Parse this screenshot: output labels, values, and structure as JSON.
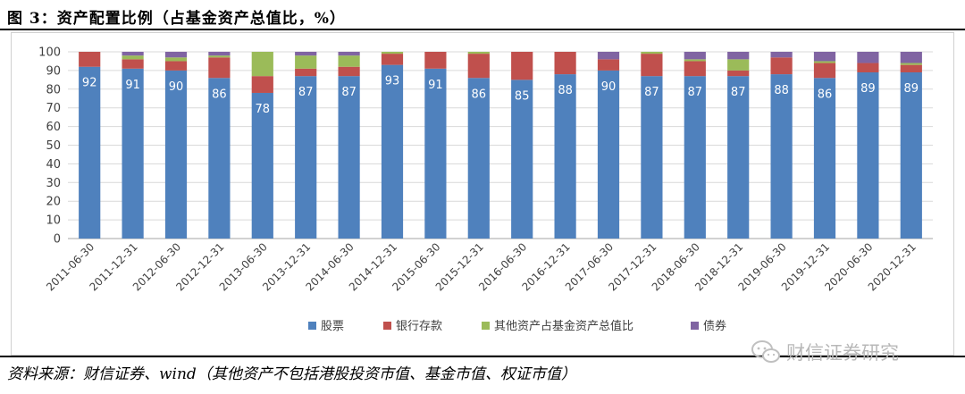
{
  "figure": {
    "title": "图 3：资产配置比例（占基金资产总值比，%）",
    "source": "资料来源：财信证券、wind（其他资产不包括港股投资市值、基金市值、权证市值）",
    "watermark": "财信证券研究"
  },
  "chart_data": {
    "type": "bar",
    "stacked": true,
    "categories": [
      "2011-06-30",
      "2011-12-31",
      "2012-06-30",
      "2012-12-31",
      "2013-06-30",
      "2013-12-31",
      "2014-06-30",
      "2014-12-31",
      "2015-06-30",
      "2015-12-31",
      "2016-06-30",
      "2016-12-31",
      "2017-06-30",
      "2017-12-31",
      "2018-06-30",
      "2018-12-31",
      "2019-06-30",
      "2019-12-31",
      "2020-06-30",
      "2020-12-31"
    ],
    "series": [
      {
        "name": "股票",
        "color": "#4F81BD",
        "values": [
          92,
          91,
          90,
          86,
          78,
          87,
          87,
          93,
          91,
          86,
          85,
          88,
          90,
          87,
          87,
          87,
          88,
          86,
          89,
          89
        ],
        "labels": true
      },
      {
        "name": "银行存款",
        "color": "#C0504D",
        "values": [
          8,
          5,
          5,
          11,
          9,
          4,
          5,
          6,
          9,
          13,
          15,
          12,
          6,
          12,
          8,
          3,
          9,
          8,
          5,
          4
        ]
      },
      {
        "name": "其他资产占基金资产总值比",
        "color": "#9BBB59",
        "values": [
          0,
          2,
          2,
          1,
          13,
          7,
          6,
          1,
          0,
          1,
          0,
          0,
          0,
          1,
          1,
          6,
          0,
          1,
          0,
          1
        ]
      },
      {
        "name": "债券",
        "color": "#8064A2",
        "values": [
          0,
          2,
          3,
          2,
          0,
          2,
          2,
          0,
          0,
          0,
          0,
          0,
          4,
          0,
          4,
          4,
          3,
          5,
          6,
          6
        ]
      }
    ],
    "ylim": [
      0,
      100
    ],
    "yticks": [
      0,
      10,
      20,
      30,
      40,
      50,
      60,
      70,
      80,
      90,
      100
    ],
    "grid": true,
    "legend_position": "bottom"
  }
}
